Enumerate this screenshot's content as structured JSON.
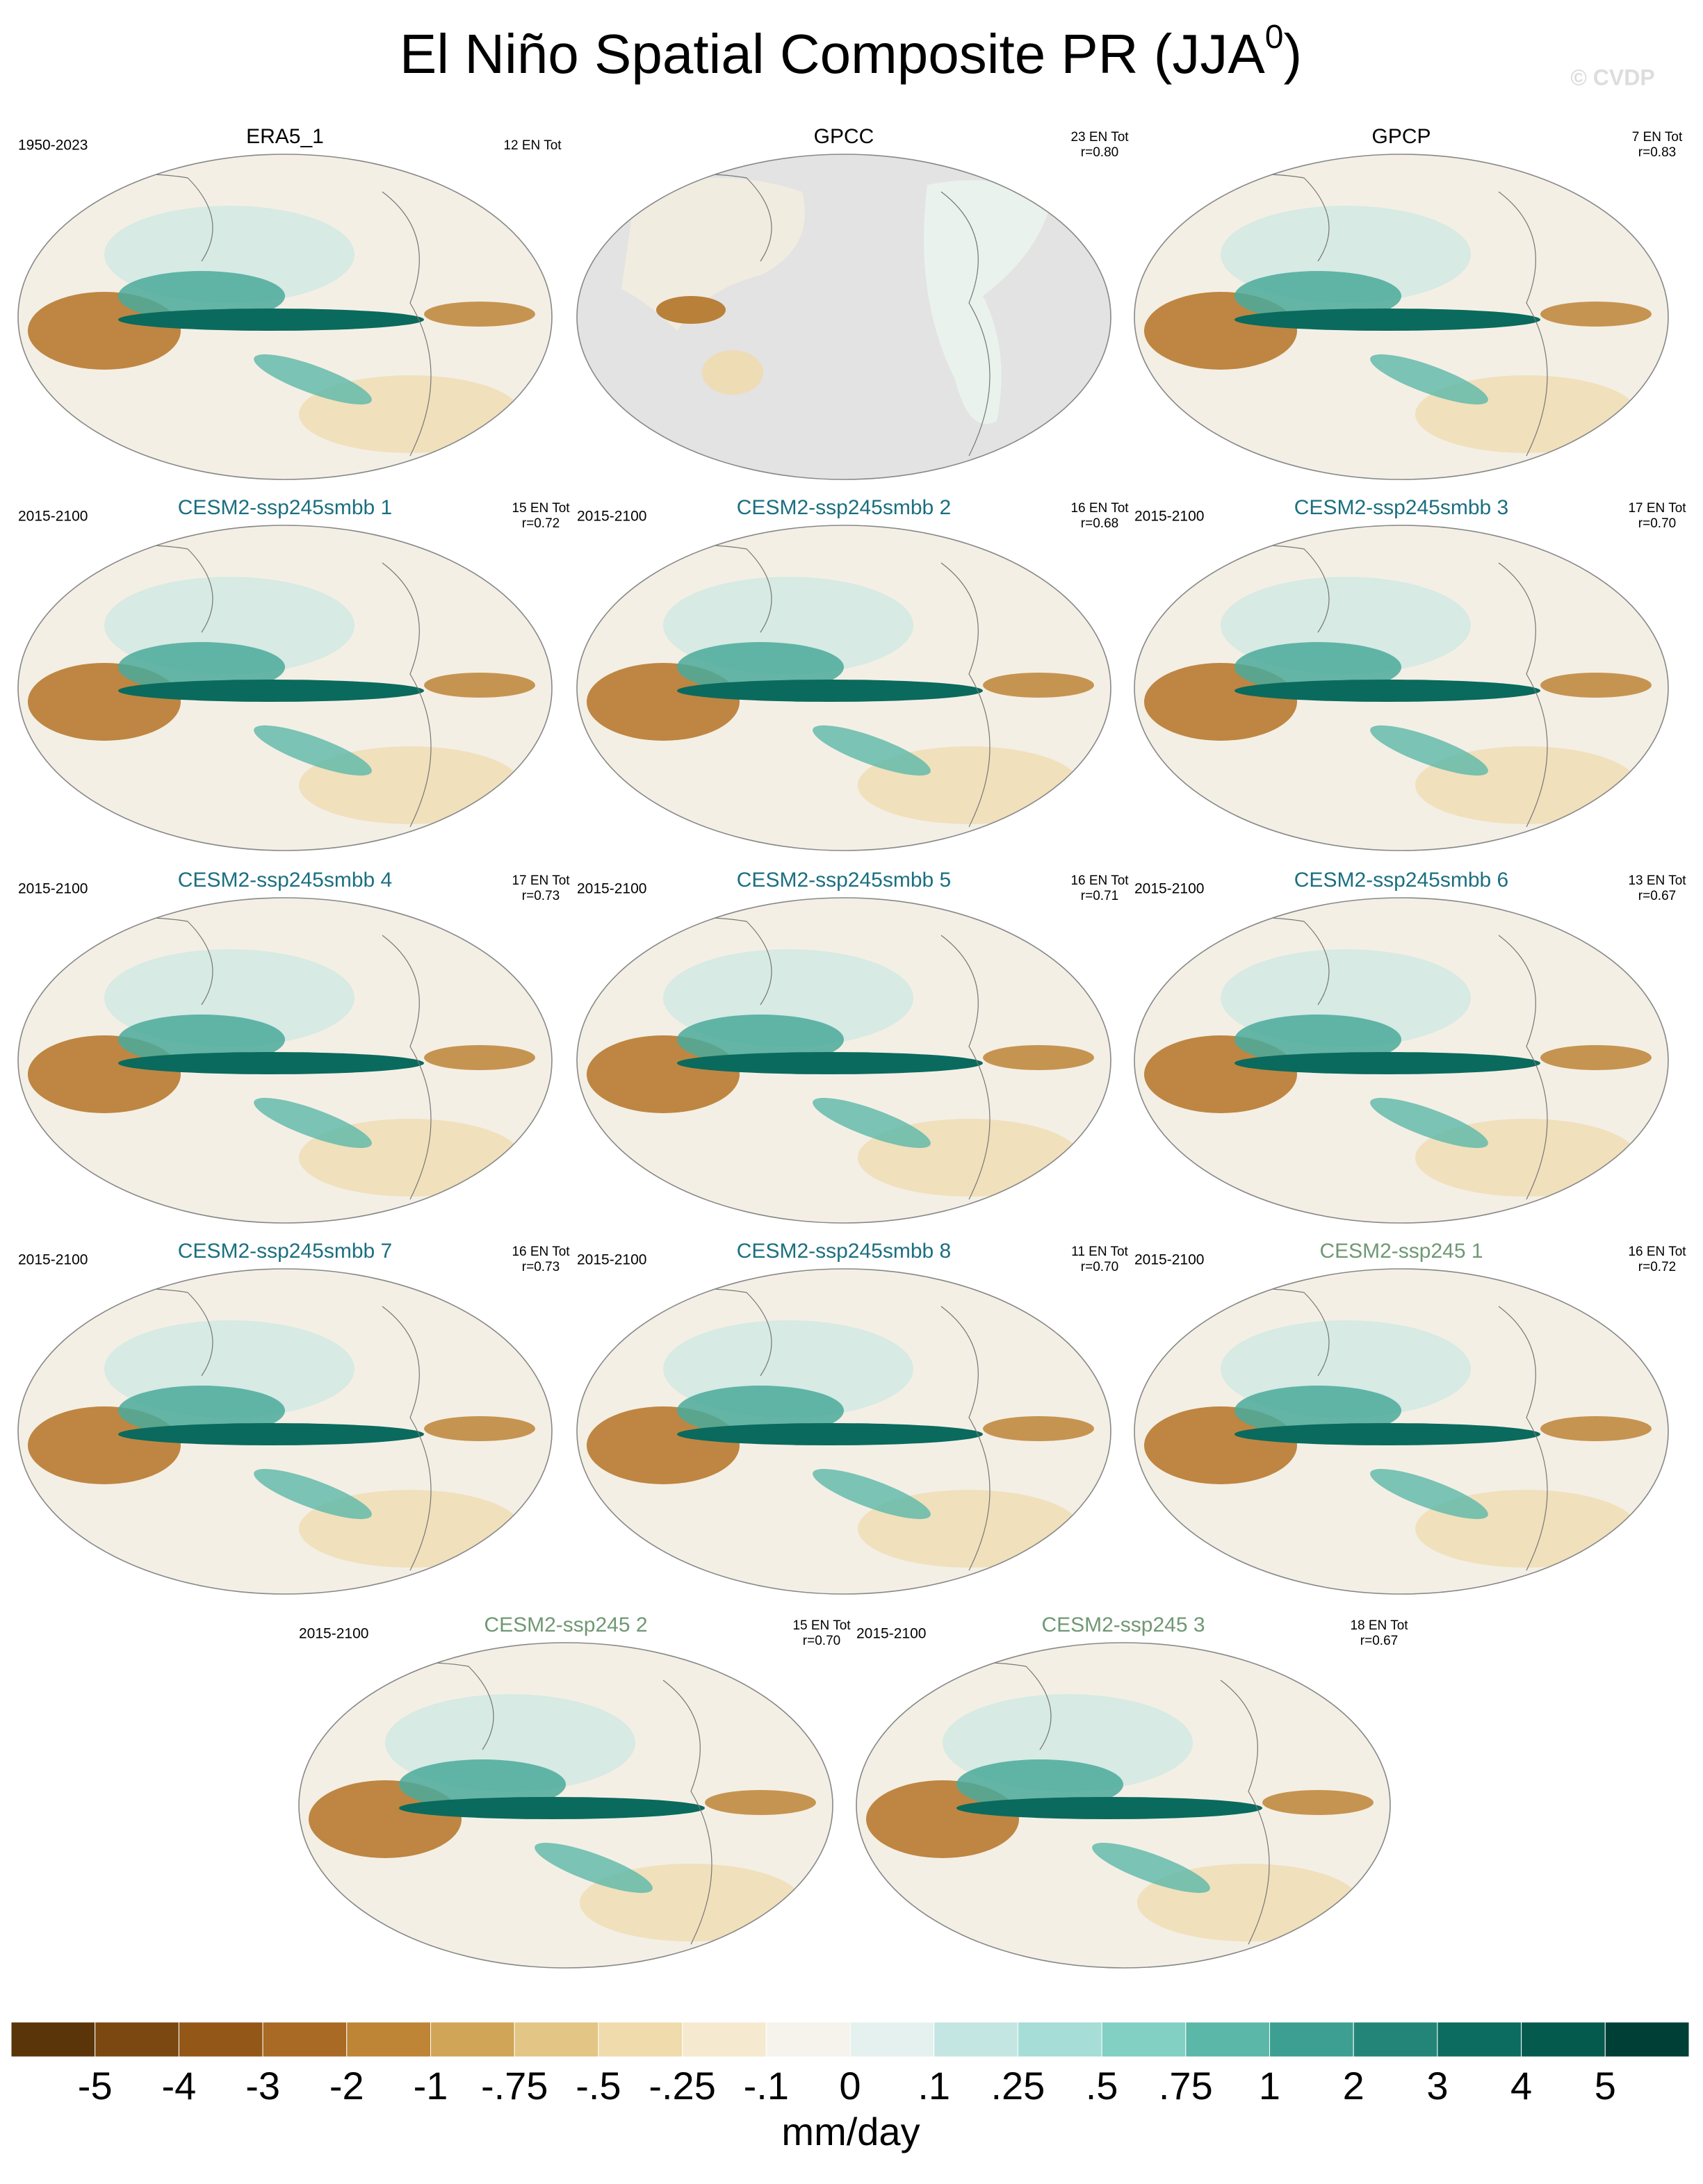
{
  "title": "El Niño Spatial Composite PR (JJA",
  "title_superscript": "0",
  "title_end": ")",
  "watermark": "© CVDP",
  "panels": [
    {
      "name": "ERA5_1",
      "period": "1950-2023",
      "count": "12 EN Tot",
      "group": "obs"
    },
    {
      "name": "GPCC",
      "count": "23 EN Tot",
      "corr": "r=0.80",
      "group": "obs",
      "land_only": true
    },
    {
      "name": "GPCP",
      "count": "7 EN Tot",
      "corr": "r=0.83",
      "group": "obs"
    },
    {
      "name": "CESM2-ssp245smbb 1",
      "period": "2015-2100",
      "count": "15 EN Tot",
      "corr": "r=0.72",
      "group": "smbb"
    },
    {
      "name": "CESM2-ssp245smbb 2",
      "period": "2015-2100",
      "count": "16 EN Tot",
      "corr": "r=0.68",
      "group": "smbb"
    },
    {
      "name": "CESM2-ssp245smbb 3",
      "period": "2015-2100",
      "count": "17 EN Tot",
      "corr": "r=0.70",
      "group": "smbb"
    },
    {
      "name": "CESM2-ssp245smbb 4",
      "period": "2015-2100",
      "count": "17 EN Tot",
      "corr": "r=0.73",
      "group": "smbb"
    },
    {
      "name": "CESM2-ssp245smbb 5",
      "period": "2015-2100",
      "count": "16 EN Tot",
      "corr": "r=0.71",
      "group": "smbb"
    },
    {
      "name": "CESM2-ssp245smbb 6",
      "period": "2015-2100",
      "count": "13 EN Tot",
      "corr": "r=0.67",
      "group": "smbb"
    },
    {
      "name": "CESM2-ssp245smbb 7",
      "period": "2015-2100",
      "count": "16 EN Tot",
      "corr": "r=0.73",
      "group": "smbb"
    },
    {
      "name": "CESM2-ssp245smbb 8",
      "period": "2015-2100",
      "count": "11 EN Tot",
      "corr": "r=0.70",
      "group": "smbb"
    },
    {
      "name": "CESM2-ssp245 1",
      "period": "2015-2100",
      "count": "16 EN Tot",
      "corr": "r=0.72",
      "group": "ssp245"
    },
    {
      "name": "CESM2-ssp245 2",
      "period": "2015-2100",
      "count": "15 EN Tot",
      "corr": "r=0.70",
      "group": "ssp245"
    },
    {
      "name": "CESM2-ssp245 3",
      "period": "2015-2100",
      "count": "18 EN Tot",
      "corr": "r=0.67",
      "group": "ssp245"
    }
  ],
  "group_colors": {
    "obs": "#000000",
    "smbb": "#1b6f80",
    "ssp245": "#6f9873"
  },
  "colorbar": {
    "colors": [
      "#5a3509",
      "#7a4810",
      "#935717",
      "#a86a24",
      "#bd8535",
      "#d0a557",
      "#e3c585",
      "#efdbac",
      "#f5ead0",
      "#f6f2ec",
      "#e5f1ef",
      "#c4e6e2",
      "#a6ddd6",
      "#82cfc3",
      "#5bb8a9",
      "#3c9f91",
      "#238578",
      "#0c6c60",
      "#055a4e",
      "#003f36"
    ],
    "labels": [
      "-5",
      "-4",
      "-3",
      "-2",
      "-1",
      "-.75",
      "-.5",
      "-.25",
      "-.1",
      "0",
      ".1",
      ".25",
      ".5",
      ".75",
      "1",
      "2",
      "3",
      "4",
      "5"
    ],
    "unit": "mm/day"
  }
}
